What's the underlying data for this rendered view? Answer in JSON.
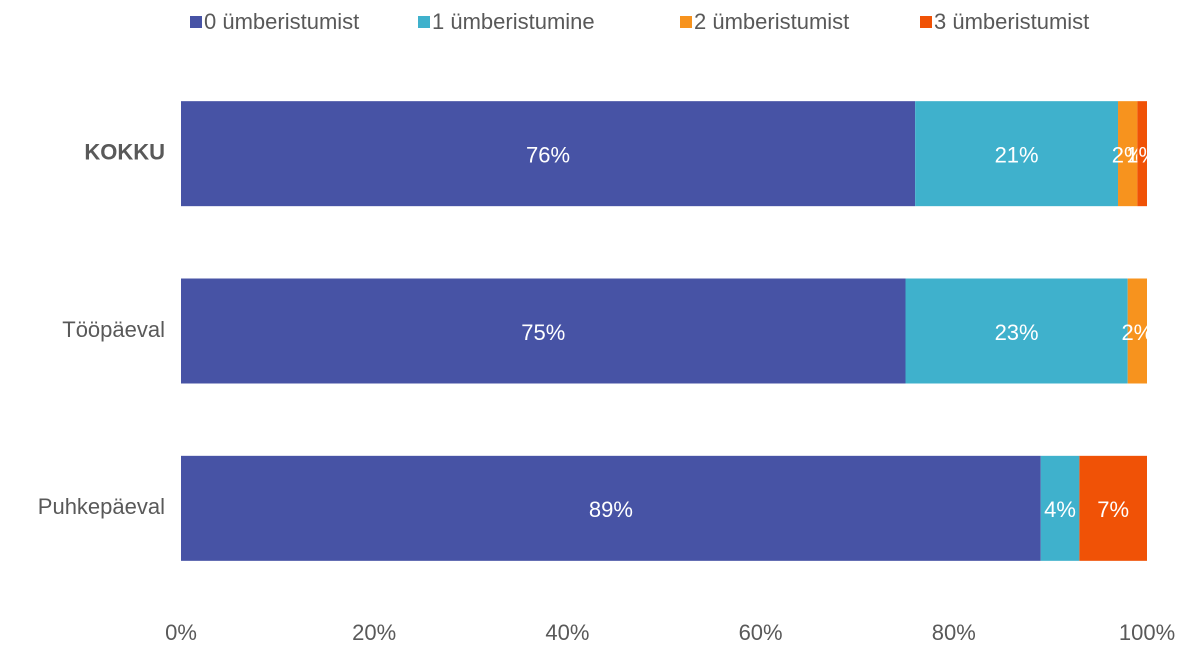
{
  "chart_data": {
    "type": "stacked-bar-horizontal",
    "categories": [
      "KOKKU",
      "Tööpäeval",
      "Puhkepäeval"
    ],
    "series": [
      {
        "name": "0 ümberistumist",
        "color": "#4753a5",
        "values": [
          76,
          75,
          89
        ],
        "value_labels": [
          "76%",
          "75%",
          "89%"
        ]
      },
      {
        "name": "1 ümberistumine",
        "color": "#3fb1cc",
        "values": [
          21,
          23,
          4
        ],
        "value_labels": [
          "21%",
          "23%",
          "4%"
        ]
      },
      {
        "name": "2 ümberistumist",
        "color": "#f7931e",
        "values": [
          2,
          2,
          null
        ],
        "value_labels": [
          "2%",
          "2%",
          null
        ]
      },
      {
        "name": "3 ümberistumist",
        "color": "#f05206",
        "values": [
          1,
          null,
          7
        ],
        "value_labels": [
          "1%",
          null,
          "7%"
        ]
      }
    ],
    "xlim": [
      0,
      100
    ],
    "xticks": [
      {
        "value": 0,
        "label": "0%"
      },
      {
        "value": 20,
        "label": "20%"
      },
      {
        "value": 40,
        "label": "40%"
      },
      {
        "value": 60,
        "label": "60%"
      },
      {
        "value": 80,
        "label": "80%"
      },
      {
        "value": 100,
        "label": "100%"
      }
    ],
    "legend": "top"
  }
}
